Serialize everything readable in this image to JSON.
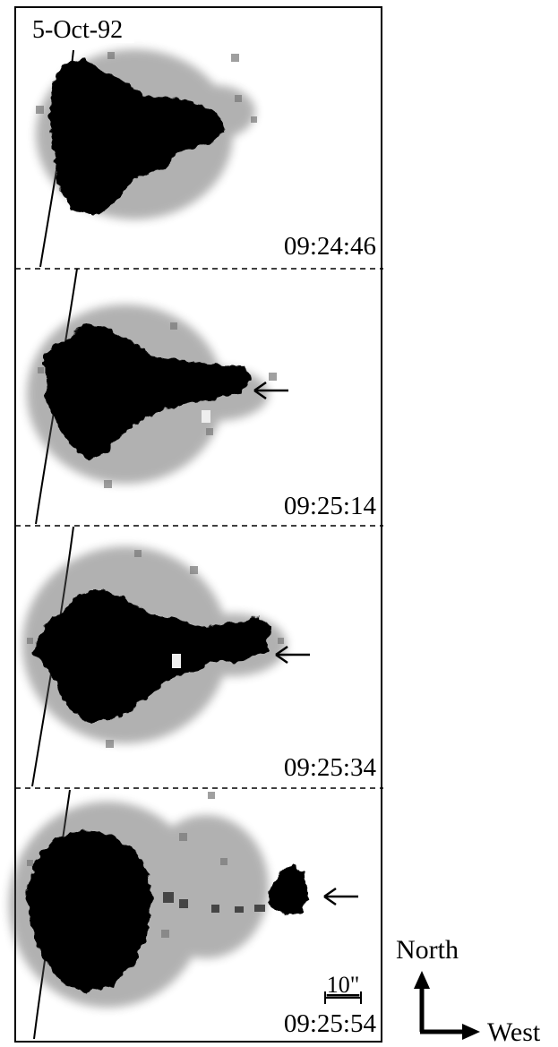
{
  "figure": {
    "date_label": "5-Oct-92",
    "panels": [
      {
        "time": "09:24:46",
        "arrow": false
      },
      {
        "time": "09:25:14",
        "arrow": true
      },
      {
        "time": "09:25:34",
        "arrow": true
      },
      {
        "time": "09:25:54",
        "arrow": true
      }
    ],
    "scale_bar_label": "10\"",
    "compass": {
      "north": "North",
      "west": "West"
    }
  }
}
